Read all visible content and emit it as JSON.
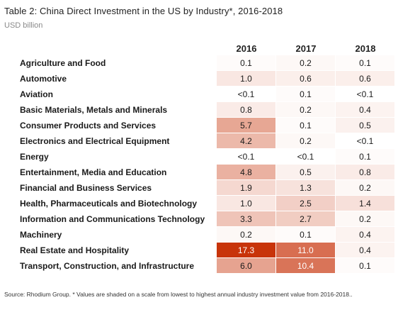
{
  "table": {
    "title": "Table 2: China Direct Investment in the US by Industry*, 2016-2018",
    "subtitle": "USD billion",
    "columns": [
      "2016",
      "2017",
      "2018"
    ],
    "rows": [
      {
        "label": "Agriculture and Food",
        "values": [
          "0.1",
          "0.2",
          "0.1"
        ]
      },
      {
        "label": "Automotive",
        "values": [
          "1.0",
          "0.6",
          "0.6"
        ]
      },
      {
        "label": "Aviation",
        "values": [
          "<0.1",
          "0.1",
          "<0.1"
        ]
      },
      {
        "label": "Basic Materials, Metals and Minerals",
        "values": [
          "0.8",
          "0.2",
          "0.4"
        ]
      },
      {
        "label": "Consumer Products and Services",
        "values": [
          "5.7",
          "0.1",
          "0.5"
        ]
      },
      {
        "label": "Electronics and Electrical Equipment",
        "values": [
          "4.2",
          "0.2",
          "<0.1"
        ]
      },
      {
        "label": "Energy",
        "values": [
          "<0.1",
          "<0.1",
          "0.1"
        ]
      },
      {
        "label": "Entertainment, Media and Education",
        "values": [
          "4.8",
          "0.5",
          "0.8"
        ]
      },
      {
        "label": "Financial and Business Services",
        "values": [
          "1.9",
          "1.3",
          "0.2"
        ]
      },
      {
        "label": "Health, Pharmaceuticals and Biotechnology",
        "values": [
          "1.0",
          "2.5",
          "1.4"
        ]
      },
      {
        "label": "Information and Communications Technology",
        "values": [
          "3.3",
          "2.7",
          "0.2"
        ]
      },
      {
        "label": "Machinery",
        "values": [
          "0.2",
          "0.1",
          "0.4"
        ]
      },
      {
        "label": "Real Estate and Hospitality",
        "values": [
          "17.3",
          "11.0",
          "0.4"
        ]
      },
      {
        "label": "Transport, Construction, and Infrastructure",
        "values": [
          "6.0",
          "10.4",
          "0.1"
        ]
      }
    ],
    "shade": {
      "min": 0,
      "max": 17.3,
      "color_low": "#ffffff",
      "color_high": "#c8340a"
    },
    "source": "Source: Rhodium Group. * Values are shaded on a scale from lowest to highest annual industry investment value from 2016-2018.."
  }
}
